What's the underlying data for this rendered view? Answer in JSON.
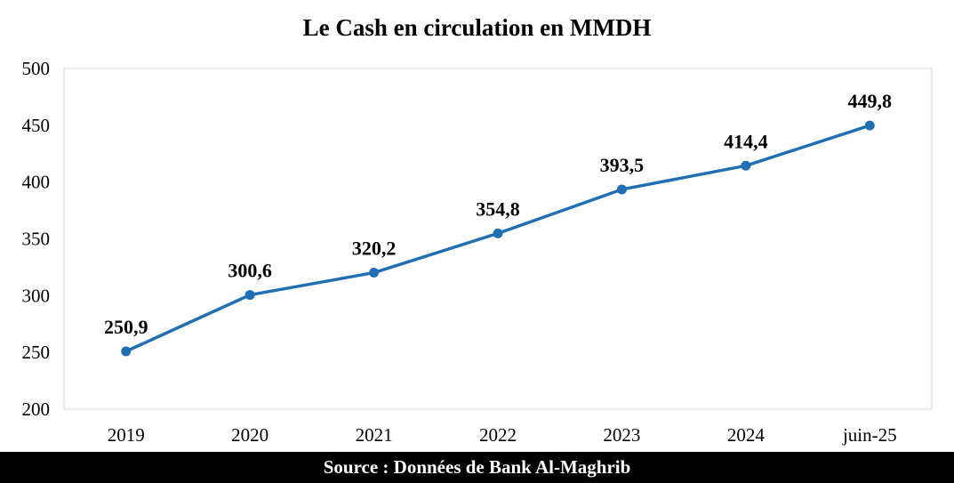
{
  "chart_data": {
    "type": "line",
    "title": "Le Cash en circulation  en MMDH",
    "categories": [
      "2019",
      "2020",
      "2021",
      "2022",
      "2023",
      "2024",
      "juin-25"
    ],
    "series": [
      {
        "values": [
          250.9,
          300.6,
          320.2,
          354.8,
          393.5,
          414.4,
          449.8
        ],
        "data_labels": [
          "250,9",
          "300,6",
          "320,2",
          "354,8",
          "393,5",
          "414,4",
          "449,8"
        ],
        "color": "#1f6fb5"
      }
    ],
    "ylim": [
      200,
      500
    ],
    "yticks": [
      200,
      250,
      300,
      350,
      400,
      450,
      500
    ],
    "grid": false,
    "legend": "none"
  },
  "footer": {
    "source": "Source : Données de Bank Al-Maghrib"
  }
}
